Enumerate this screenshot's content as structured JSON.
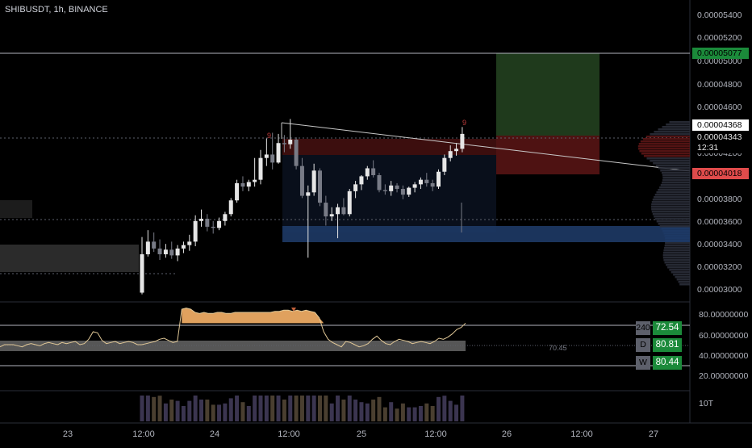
{
  "header": {
    "symbol_title": "SHIBUSDT, 1h, BINANCE"
  },
  "price_axis": {
    "ticks": [
      "0.00005400",
      "0.00005200",
      "0.00005000",
      "0.00004800",
      "0.00004600",
      "0.00004200",
      "0.00003800",
      "0.00003600",
      "0.00003400",
      "0.00003200",
      "0.00003000"
    ],
    "badges": {
      "target": "0.00005077",
      "upper": "0.00004368",
      "current": "0.00004343",
      "countdown": "12:31",
      "stop": "0.00004018"
    }
  },
  "oscillator": {
    "axis_ticks": [
      "80.00000000",
      "60.00000000",
      "40.00000000",
      "20.00000000"
    ],
    "mid_value": "70.45",
    "timeframes": [
      {
        "key": "240",
        "value": "72.54"
      },
      {
        "key": "D",
        "value": "80.81"
      },
      {
        "key": "W",
        "value": "80.44"
      }
    ]
  },
  "volume": {
    "axis_label": "10T"
  },
  "time_axis": {
    "labels": [
      "23",
      "12:00",
      "24",
      "12:00",
      "25",
      "12:00",
      "26",
      "12:00",
      "27"
    ]
  },
  "colors": {
    "up": "#e6e6e6",
    "down": "#787b86",
    "long_zone": "#1f3a1c",
    "stop_zone": "#5c1515",
    "support_zone": "#1e3a66",
    "badge_green": "#1b8a3a",
    "badge_red": "#e04b4b",
    "rsi_fill": "#e0a15e"
  },
  "chart_data": [
    {
      "type": "candlestick",
      "title": "SHIBUSDT, 1h, BINANCE",
      "ylim": [
        2.9e-05,
        5.5e-05
      ],
      "price_scale_ticks": [
        3e-05,
        3.2e-05,
        3.4e-05,
        3.6e-05,
        3.8e-05,
        4.2e-05,
        4.6e-05,
        4.8e-05,
        5e-05,
        5.2e-05,
        5.4e-05
      ],
      "candles": [
        {
          "o": 2.975e-05,
          "h": 3.46e-05,
          "l": 2.96e-05,
          "c": 3.31e-05
        },
        {
          "o": 3.31e-05,
          "h": 3.52e-05,
          "l": 3.29e-05,
          "c": 3.42e-05
        },
        {
          "o": 3.42e-05,
          "h": 3.5e-05,
          "l": 3.33e-05,
          "c": 3.36e-05
        },
        {
          "o": 3.36e-05,
          "h": 3.44e-05,
          "l": 3.26e-05,
          "c": 3.31e-05
        },
        {
          "o": 3.31e-05,
          "h": 3.4e-05,
          "l": 3.28e-05,
          "c": 3.35e-05
        },
        {
          "o": 3.35e-05,
          "h": 3.42e-05,
          "l": 3.27e-05,
          "c": 3.3e-05
        },
        {
          "o": 3.3e-05,
          "h": 3.39e-05,
          "l": 3.25e-05,
          "c": 3.36e-05
        },
        {
          "o": 3.36e-05,
          "h": 3.42e-05,
          "l": 3.32e-05,
          "c": 3.39e-05
        },
        {
          "o": 3.39e-05,
          "h": 3.48e-05,
          "l": 3.34e-05,
          "c": 3.42e-05
        },
        {
          "o": 3.42e-05,
          "h": 3.65e-05,
          "l": 3.38e-05,
          "c": 3.6e-05
        },
        {
          "o": 3.6e-05,
          "h": 3.7e-05,
          "l": 3.55e-05,
          "c": 3.62e-05
        },
        {
          "o": 3.62e-05,
          "h": 3.66e-05,
          "l": 3.51e-05,
          "c": 3.55e-05
        },
        {
          "o": 3.55e-05,
          "h": 3.6e-05,
          "l": 3.49e-05,
          "c": 3.54e-05
        },
        {
          "o": 3.54e-05,
          "h": 3.63e-05,
          "l": 3.52e-05,
          "c": 3.6e-05
        },
        {
          "o": 3.6e-05,
          "h": 3.68e-05,
          "l": 3.56e-05,
          "c": 3.66e-05
        },
        {
          "o": 3.66e-05,
          "h": 3.8e-05,
          "l": 3.64e-05,
          "c": 3.78e-05
        },
        {
          "o": 3.78e-05,
          "h": 3.96e-05,
          "l": 3.76e-05,
          "c": 3.93e-05
        },
        {
          "o": 3.93e-05,
          "h": 3.99e-05,
          "l": 3.86e-05,
          "c": 3.9e-05
        },
        {
          "o": 3.9e-05,
          "h": 3.96e-05,
          "l": 3.86e-05,
          "c": 3.94e-05
        },
        {
          "o": 3.94e-05,
          "h": 4.15e-05,
          "l": 3.9e-05,
          "c": 3.96e-05
        },
        {
          "o": 3.96e-05,
          "h": 4.22e-05,
          "l": 3.92e-05,
          "c": 4.15e-05
        },
        {
          "o": 4.15e-05,
          "h": 4.32e-05,
          "l": 4.08e-05,
          "c": 4.18e-05
        },
        {
          "o": 4.18e-05,
          "h": 4.37e-05,
          "l": 4.05e-05,
          "c": 4.11e-05
        },
        {
          "o": 4.11e-05,
          "h": 4.36e-05,
          "l": 4.1e-05,
          "c": 4.28e-05
        },
        {
          "o": 4.28e-05,
          "h": 4.35e-05,
          "l": 4.2e-05,
          "c": 4.27e-05
        },
        {
          "o": 4.27e-05,
          "h": 4.49e-05,
          "l": 4.23e-05,
          "c": 4.31e-05
        },
        {
          "o": 4.31e-05,
          "h": 4.33e-05,
          "l": 4.05e-05,
          "c": 4.08e-05
        },
        {
          "o": 4.08e-05,
          "h": 4.15e-05,
          "l": 3.8e-05,
          "c": 3.82e-05
        },
        {
          "o": 3.82e-05,
          "h": 3.91e-05,
          "l": 3.28e-05,
          "c": 3.85e-05
        },
        {
          "o": 3.85e-05,
          "h": 4.1e-05,
          "l": 3.82e-05,
          "c": 4.04e-05
        },
        {
          "o": 4.04e-05,
          "h": 4.06e-05,
          "l": 3.73e-05,
          "c": 3.76e-05
        },
        {
          "o": 3.76e-05,
          "h": 3.82e-05,
          "l": 3.56e-05,
          "c": 3.64e-05
        },
        {
          "o": 3.64e-05,
          "h": 3.72e-05,
          "l": 3.6e-05,
          "c": 3.66e-05
        },
        {
          "o": 3.66e-05,
          "h": 3.75e-05,
          "l": 3.45e-05,
          "c": 3.72e-05
        },
        {
          "o": 3.72e-05,
          "h": 3.8e-05,
          "l": 3.65e-05,
          "c": 3.66e-05
        },
        {
          "o": 3.66e-05,
          "h": 3.88e-05,
          "l": 3.64e-05,
          "c": 3.86e-05
        },
        {
          "o": 3.86e-05,
          "h": 3.95e-05,
          "l": 3.8e-05,
          "c": 3.92e-05
        },
        {
          "o": 3.92e-05,
          "h": 4e-05,
          "l": 3.87e-05,
          "c": 3.99e-05
        },
        {
          "o": 3.99e-05,
          "h": 4.08e-05,
          "l": 3.96e-05,
          "c": 4.06e-05
        },
        {
          "o": 4.06e-05,
          "h": 4.13e-05,
          "l": 3.98e-05,
          "c": 4e-05
        },
        {
          "o": 4e-05,
          "h": 4.02e-05,
          "l": 3.85e-05,
          "c": 3.87e-05
        },
        {
          "o": 3.87e-05,
          "h": 3.92e-05,
          "l": 3.83e-05,
          "c": 3.86e-05
        },
        {
          "o": 3.86e-05,
          "h": 3.95e-05,
          "l": 3.82e-05,
          "c": 3.91e-05
        },
        {
          "o": 3.91e-05,
          "h": 3.93e-05,
          "l": 3.85e-05,
          "c": 3.88e-05
        },
        {
          "o": 3.88e-05,
          "h": 3.91e-05,
          "l": 3.79e-05,
          "c": 3.83e-05
        },
        {
          "o": 3.83e-05,
          "h": 3.9e-05,
          "l": 3.81e-05,
          "c": 3.89e-05
        },
        {
          "o": 3.89e-05,
          "h": 3.94e-05,
          "l": 3.85e-05,
          "c": 3.92e-05
        },
        {
          "o": 3.92e-05,
          "h": 3.98e-05,
          "l": 3.88e-05,
          "c": 3.96e-05
        },
        {
          "o": 3.96e-05,
          "h": 4.02e-05,
          "l": 3.9e-05,
          "c": 3.93e-05
        },
        {
          "o": 3.93e-05,
          "h": 3.96e-05,
          "l": 3.86e-05,
          "c": 3.9e-05
        },
        {
          "o": 3.9e-05,
          "h": 4.05e-05,
          "l": 3.88e-05,
          "c": 4.03e-05
        },
        {
          "o": 4.03e-05,
          "h": 4.18e-05,
          "l": 4e-05,
          "c": 4.15e-05
        },
        {
          "o": 4.15e-05,
          "h": 4.26e-05,
          "l": 4.12e-05,
          "c": 4.21e-05
        },
        {
          "o": 4.21e-05,
          "h": 4.28e-05,
          "l": 4.17e-05,
          "c": 4.23e-05
        },
        {
          "o": 4.23e-05,
          "h": 4.42e-05,
          "l": 4.2e-05,
          "c": 4.36e-05
        }
      ],
      "overlays": {
        "long_position": {
          "entry": 4.368e-05,
          "target": 5.077e-05,
          "stop": 4.018e-05
        },
        "current_price": 4.343e-05,
        "descending_trendline": [
          4.5e-05,
          4.01e-05
        ],
        "support_zone": [
          3.4e-05,
          3.52e-05
        ]
      }
    },
    {
      "type": "line",
      "ylim": [
        15,
        90
      ],
      "axis_ticks": [
        20,
        40,
        60,
        80
      ],
      "levels": [
        30,
        45,
        70
      ],
      "mid_value": 70.45,
      "values": [
        48,
        50,
        50,
        50,
        49,
        48,
        50,
        51,
        50,
        49,
        51,
        52,
        51,
        50,
        52,
        51,
        52,
        53,
        50,
        51,
        55,
        62,
        61,
        54,
        51,
        52,
        53,
        51,
        52,
        53,
        52,
        50,
        50,
        51,
        52,
        53,
        55,
        56,
        54,
        52,
        53,
        83,
        84,
        83,
        80,
        79,
        80,
        79,
        79,
        80,
        80,
        79,
        79,
        80,
        80,
        80,
        80,
        80,
        80,
        80,
        80,
        80,
        81,
        81,
        82,
        82,
        81,
        82,
        81,
        82,
        81,
        80,
        75,
        62,
        55,
        52,
        50,
        48,
        53,
        52,
        50,
        48,
        49,
        51,
        55,
        58,
        54,
        51,
        50,
        53,
        55,
        54,
        53,
        51,
        52,
        53,
        52,
        51,
        53,
        56,
        55,
        57,
        60,
        64,
        66,
        70
      ]
    },
    {
      "type": "bar",
      "axis_label": "10T"
    }
  ]
}
